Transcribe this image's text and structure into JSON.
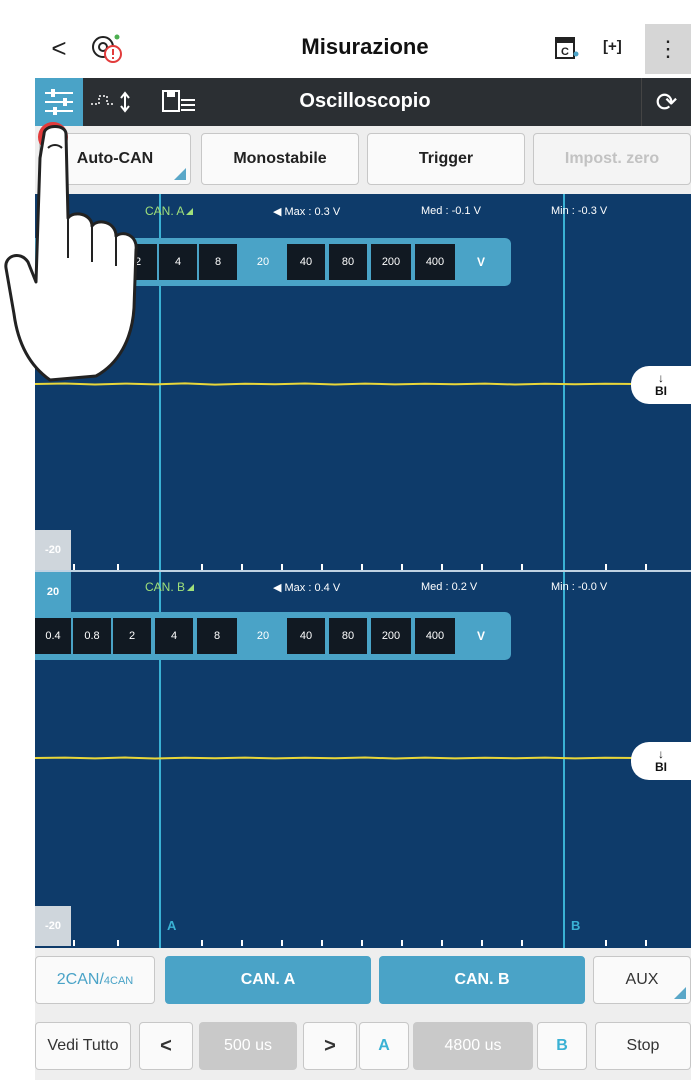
{
  "topbar": {
    "back_glyph": "<",
    "title": "Misurazione",
    "fit_glyph": "[+]",
    "more_glyph": "⋮",
    "icons": [
      "back-icon",
      "diagnostic-alert-icon",
      "calendar-c-icon",
      "fit-screen-icon",
      "more-vert-icon"
    ]
  },
  "band": {
    "title": "Oscilloscopio",
    "refresh_glyph": "⟳"
  },
  "toolbar": {
    "auto_can": "Auto-CAN",
    "monostabile": "Monostabile",
    "trigger": "Trigger",
    "impost_zero": "Impost. zero"
  },
  "channel_a": {
    "name": "CAN. A",
    "max": "Max : 0.3 V",
    "med": "Med : -0.1 V",
    "min": "Min : -0.3 V",
    "scales": [
      "2",
      "4",
      "8",
      "20",
      "40",
      "80",
      "200",
      "400"
    ],
    "unit": "V",
    "selected_scale": "20",
    "bottom_level": "-20",
    "marker": "BI"
  },
  "channel_b": {
    "name": "CAN. B",
    "max": "Max : 0.4 V",
    "med": "Med : 0.2 V",
    "min": "Min : -0.0 V",
    "scales": [
      "0.4",
      "0.8",
      "2",
      "4",
      "8",
      "20",
      "40",
      "80",
      "200",
      "400"
    ],
    "unit": "V",
    "selected_scale": "20",
    "top_level": "20",
    "bottom_level": "-20",
    "marker": "BI"
  },
  "cursors": {
    "a": "A",
    "b": "B"
  },
  "bottom1": {
    "twocan": "2CAN/",
    "fourcan": "4CAN",
    "can_a": "CAN. A",
    "can_b": "CAN. B",
    "aux": "AUX"
  },
  "bottom2": {
    "vedi_tutto": "Vedi Tutto",
    "prev": "<",
    "time": "500 us",
    "next": ">",
    "a": "A",
    "delta": "4800 us",
    "b": "B",
    "stop": "Stop"
  },
  "colors": {
    "scope_bg": "#0e3b6a",
    "accent": "#4aa3c7",
    "trace": "#e8d63a",
    "channel_label": "#9fe07a"
  }
}
